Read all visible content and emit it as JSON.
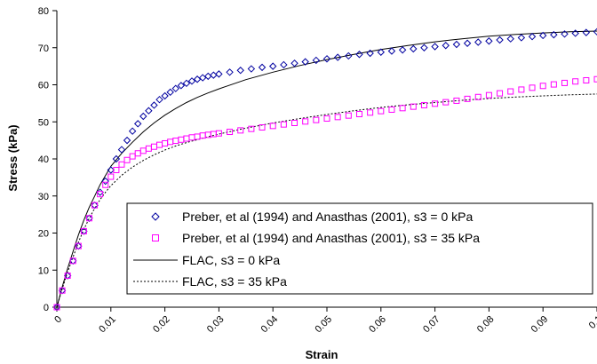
{
  "chart_data": {
    "type": "scatter",
    "xlabel": "Strain",
    "ylabel": "Stress (kPa)",
    "xlim": [
      0,
      0.1
    ],
    "ylim": [
      0,
      80
    ],
    "x_ticks": [
      "0",
      "0.01",
      "0.02",
      "0.03",
      "0.04",
      "0.05",
      "0.06",
      "0.07",
      "0.08",
      "0.09",
      "0.1"
    ],
    "y_ticks": [
      "0",
      "10",
      "20",
      "30",
      "40",
      "50",
      "60",
      "70",
      "80"
    ],
    "grid": false,
    "legend_placement": "bottom-right",
    "series": [
      {
        "name": "Preber, et al (1994) and Anasthas (2001), s3 = 0 kPa",
        "style": "diamond-markers",
        "color": "#0000a0",
        "x": [
          0,
          0.001,
          0.002,
          0.003,
          0.004,
          0.005,
          0.006,
          0.007,
          0.008,
          0.009,
          0.01,
          0.011,
          0.012,
          0.013,
          0.014,
          0.015,
          0.016,
          0.017,
          0.018,
          0.019,
          0.02,
          0.021,
          0.022,
          0.023,
          0.024,
          0.025,
          0.026,
          0.027,
          0.028,
          0.029,
          0.03,
          0.032,
          0.034,
          0.036,
          0.038,
          0.04,
          0.042,
          0.044,
          0.046,
          0.048,
          0.05,
          0.052,
          0.054,
          0.056,
          0.058,
          0.06,
          0.062,
          0.064,
          0.066,
          0.068,
          0.07,
          0.072,
          0.074,
          0.076,
          0.078,
          0.08,
          0.082,
          0.084,
          0.086,
          0.088,
          0.09,
          0.092,
          0.094,
          0.096,
          0.098,
          0.1
        ],
        "y": [
          0,
          4.5,
          8.5,
          12.5,
          16.5,
          20.5,
          24,
          27.5,
          31,
          34,
          37,
          40,
          42.5,
          45,
          47.5,
          49.5,
          51.5,
          53,
          54.5,
          56,
          57,
          58,
          59,
          59.8,
          60.4,
          61,
          61.5,
          61.9,
          62.3,
          62.6,
          62.9,
          63.4,
          63.9,
          64.3,
          64.7,
          65.0,
          65.4,
          65.8,
          66.2,
          66.6,
          67.0,
          67.4,
          67.8,
          68.2,
          68.5,
          68.8,
          69.1,
          69.4,
          69.7,
          70.0,
          70.3,
          70.6,
          70.9,
          71.2,
          71.5,
          71.8,
          72.1,
          72.4,
          72.7,
          73.0,
          73.3,
          73.5,
          73.7,
          73.9,
          74.1,
          74.3
        ]
      },
      {
        "name": "Preber, et al (1994) and Anasthas (2001), s3 = 35 kPa",
        "style": "square-markers",
        "color": "#ff00ff",
        "x": [
          0,
          0.001,
          0.002,
          0.003,
          0.004,
          0.005,
          0.006,
          0.007,
          0.008,
          0.009,
          0.01,
          0.011,
          0.012,
          0.013,
          0.014,
          0.015,
          0.016,
          0.017,
          0.018,
          0.019,
          0.02,
          0.021,
          0.022,
          0.023,
          0.024,
          0.025,
          0.026,
          0.027,
          0.028,
          0.029,
          0.03,
          0.032,
          0.034,
          0.036,
          0.038,
          0.04,
          0.042,
          0.044,
          0.046,
          0.048,
          0.05,
          0.052,
          0.054,
          0.056,
          0.058,
          0.06,
          0.062,
          0.064,
          0.066,
          0.068,
          0.07,
          0.072,
          0.074,
          0.076,
          0.078,
          0.08,
          0.082,
          0.084,
          0.086,
          0.088,
          0.09,
          0.092,
          0.094,
          0.096,
          0.098,
          0.1
        ],
        "y": [
          0,
          4.5,
          8.5,
          12.5,
          16.5,
          20.5,
          24,
          27.5,
          30.5,
          33,
          35.2,
          37,
          38.5,
          39.7,
          40.7,
          41.5,
          42.2,
          42.8,
          43.3,
          43.8,
          44.2,
          44.6,
          44.9,
          45.2,
          45.5,
          45.8,
          46.0,
          46.3,
          46.5,
          46.7,
          46.9,
          47.3,
          47.7,
          48.1,
          48.5,
          48.9,
          49.3,
          49.7,
          50.1,
          50.5,
          50.9,
          51.3,
          51.7,
          52.1,
          52.5,
          52.9,
          53.3,
          53.7,
          54.1,
          54.5,
          54.9,
          55.3,
          55.7,
          56.2,
          56.7,
          57.2,
          57.7,
          58.2,
          58.7,
          59.2,
          59.7,
          60.1,
          60.5,
          60.9,
          61.2,
          61.5
        ]
      },
      {
        "name": "FLAC, s3 = 0 kPa",
        "style": "solid-line",
        "color": "#000000",
        "x": [
          0,
          0.001,
          0.002,
          0.003,
          0.004,
          0.005,
          0.006,
          0.007,
          0.008,
          0.009,
          0.01,
          0.012,
          0.014,
          0.016,
          0.018,
          0.02,
          0.022,
          0.024,
          0.026,
          0.028,
          0.03,
          0.035,
          0.04,
          0.045,
          0.05,
          0.055,
          0.06,
          0.065,
          0.07,
          0.075,
          0.08,
          0.085,
          0.09,
          0.095,
          0.1
        ],
        "y": [
          0,
          5.5,
          10.5,
          15,
          19.5,
          23.5,
          27,
          30,
          33,
          35.5,
          38,
          41.5,
          44.5,
          47.3,
          49.7,
          51.8,
          53.6,
          55.2,
          56.6,
          57.8,
          58.9,
          61.4,
          63.4,
          65.2,
          66.8,
          68.2,
          69.5,
          70.6,
          71.6,
          72.4,
          73.1,
          73.6,
          74.0,
          74.3,
          74.5
        ]
      },
      {
        "name": "FLAC, s3 = 35 kPa",
        "style": "dotted-line",
        "color": "#000000",
        "x": [
          0,
          0.001,
          0.002,
          0.003,
          0.004,
          0.005,
          0.006,
          0.007,
          0.008,
          0.009,
          0.01,
          0.012,
          0.014,
          0.016,
          0.018,
          0.02,
          0.022,
          0.024,
          0.026,
          0.028,
          0.03,
          0.035,
          0.04,
          0.045,
          0.05,
          0.055,
          0.06,
          0.065,
          0.07,
          0.075,
          0.08,
          0.085,
          0.09,
          0.095,
          0.1
        ],
        "y": [
          0,
          5,
          9.5,
          13.5,
          17.5,
          21,
          24,
          26.7,
          29,
          31,
          32.8,
          35.6,
          37.8,
          39.6,
          41.1,
          42.4,
          43.5,
          44.4,
          45.2,
          46.0,
          46.7,
          48.3,
          49.7,
          50.9,
          52.0,
          53.0,
          53.9,
          54.6,
          55.2,
          55.8,
          56.3,
          56.7,
          57.0,
          57.3,
          57.5
        ]
      }
    ]
  }
}
